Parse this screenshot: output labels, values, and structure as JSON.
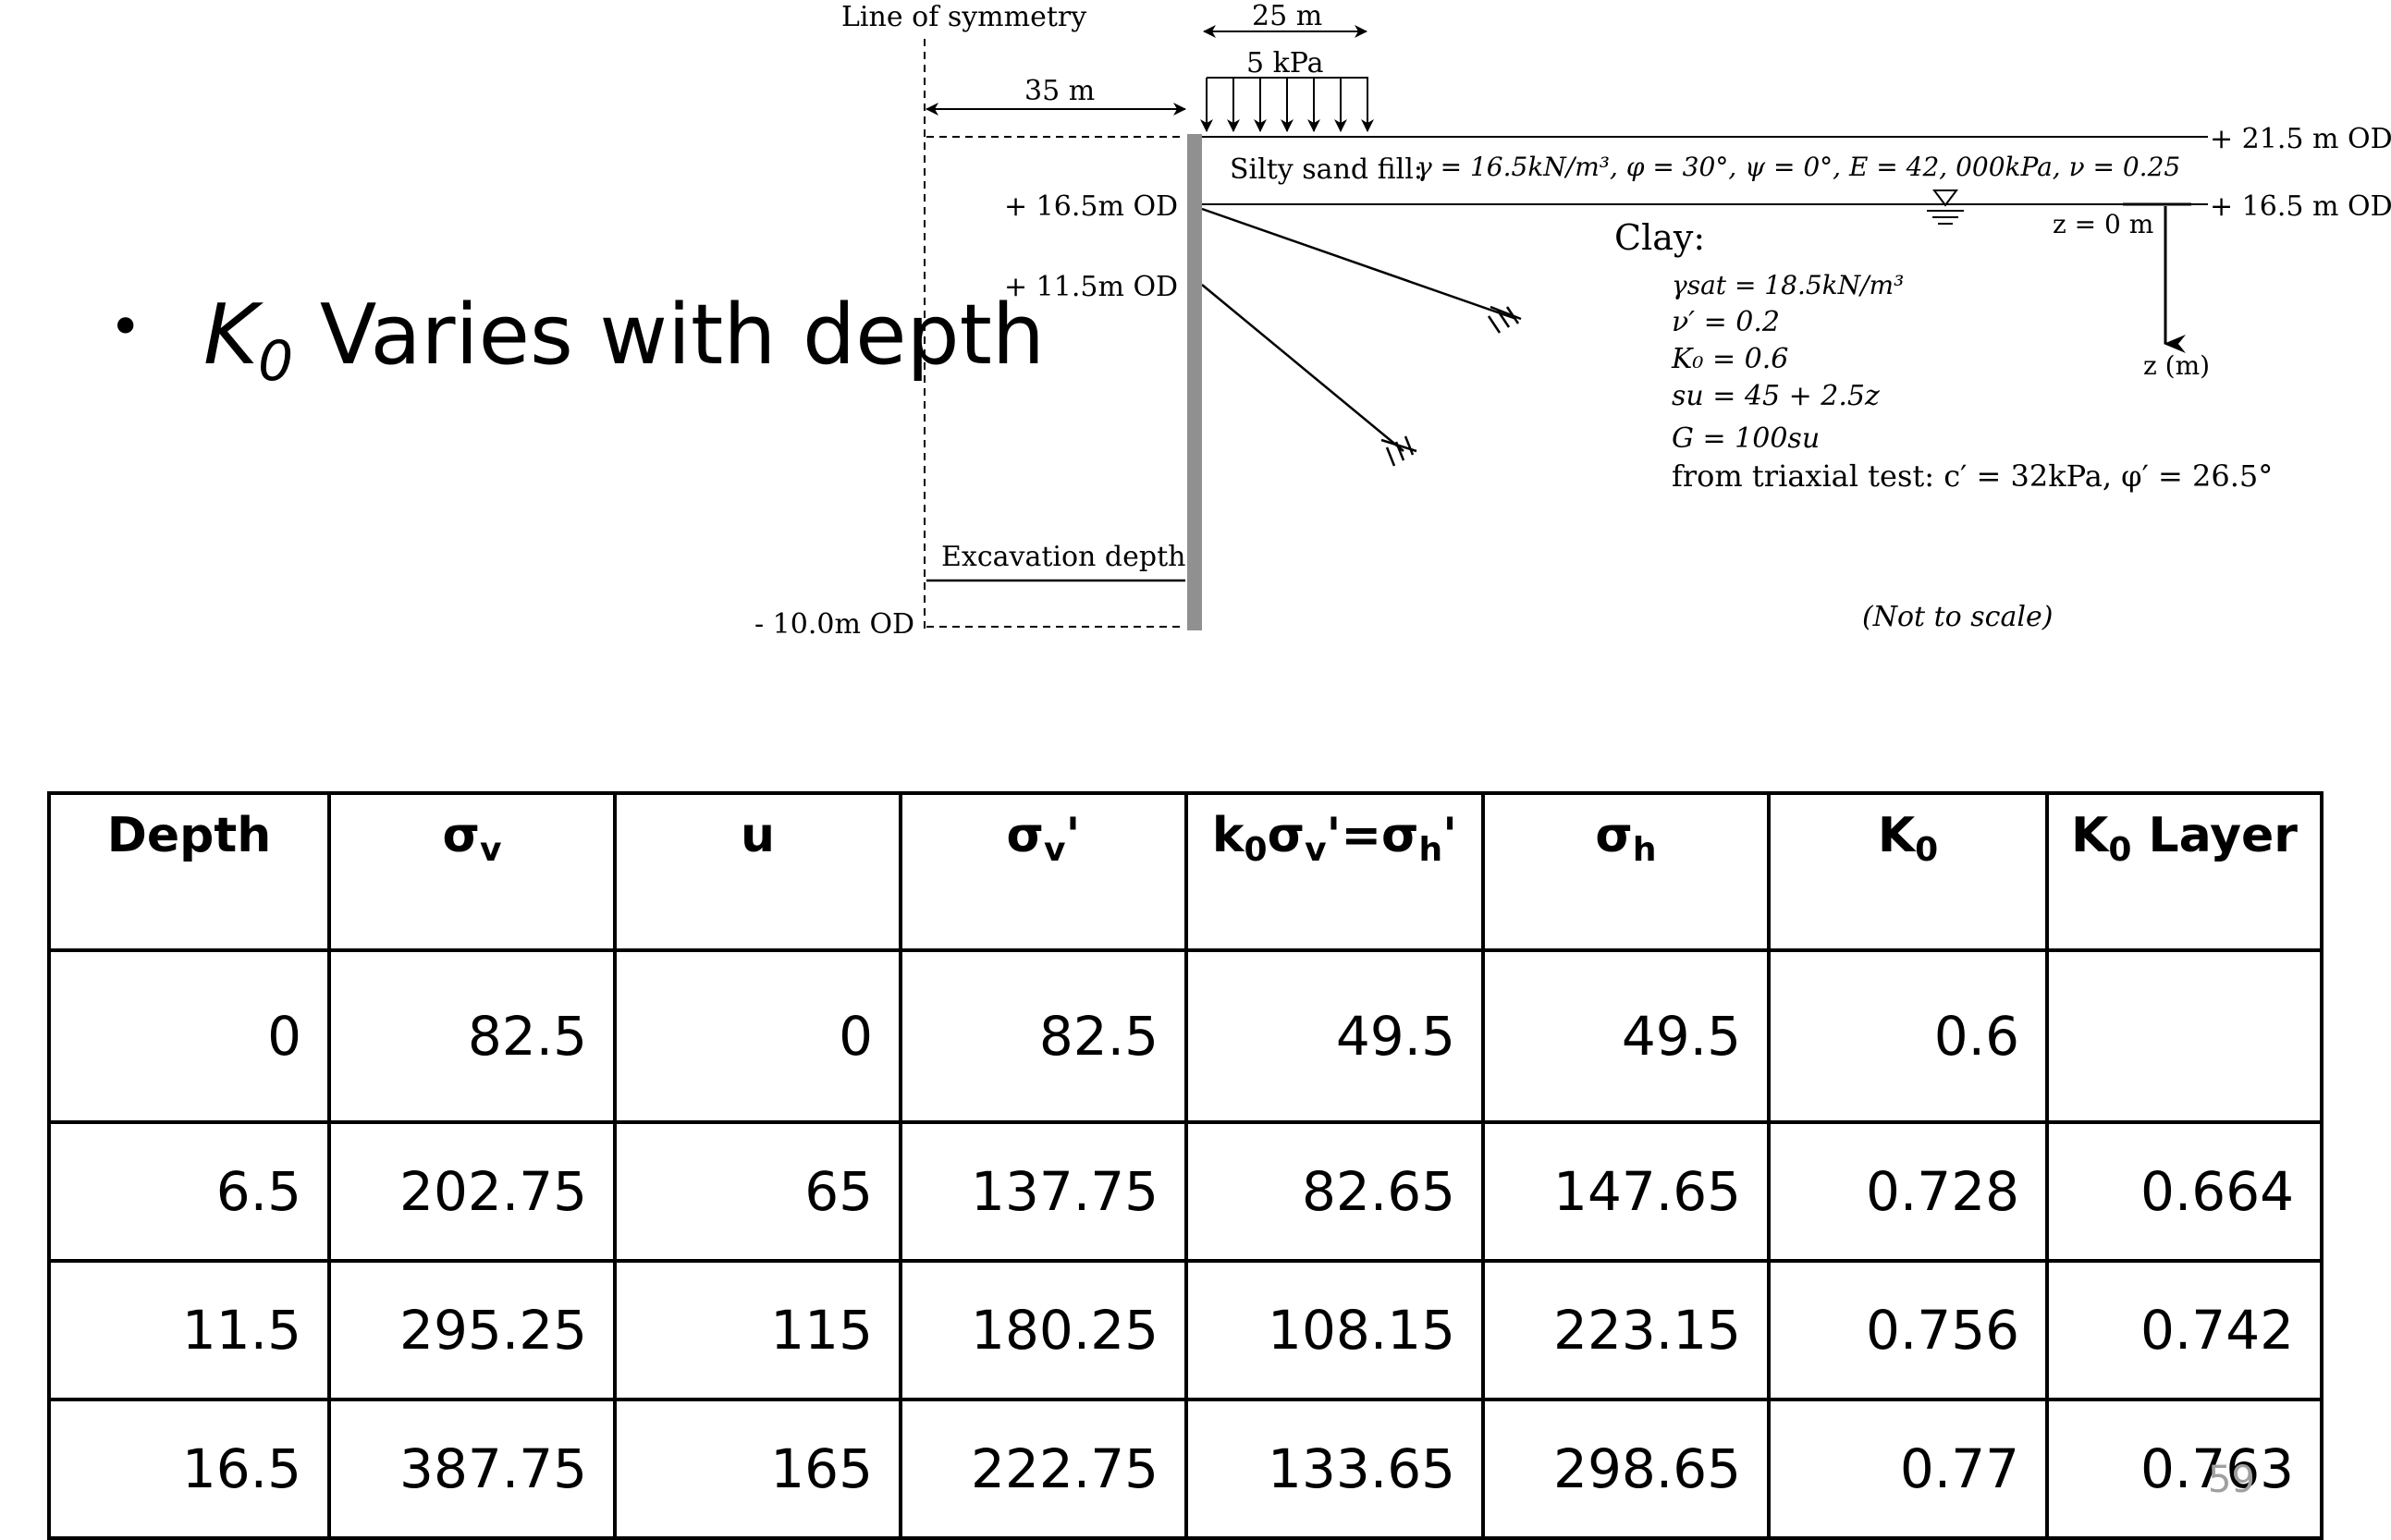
{
  "bullet": {
    "k_symbol": "K",
    "k_sub": "0",
    "text": "Varies with depth"
  },
  "diagram": {
    "line_of_symmetry": "Line of symmetry",
    "dim_35": "35 m",
    "dim_25": "25 m",
    "load": "5 kPa",
    "level_top": "+ 21.5 m OD",
    "level_water": "+ 16.5 m OD",
    "anchor1_level": "+ 16.5m OD",
    "anchor2_level": "+ 11.5m OD",
    "excavation": "Excavation depth",
    "base_level": "- 10.0m OD",
    "not_to_scale": "(Not to scale)",
    "z0": "z = 0 m",
    "zaxis": "z (m)",
    "fill_label": "Silty sand fill:",
    "fill_props": "γ = 16.5kN/m³, φ = 30°, ψ = 0°, E = 42, 000kPa, ν = 0.25",
    "clay_label": "Clay:",
    "clay_props": [
      "γsat = 18.5kN/m³",
      "ν′ = 0.2",
      "K₀ = 0.6",
      "su = 45 + 2.5z",
      "G = 100su",
      "from triaxial test: c′ = 32kPa, φ′ = 26.5°"
    ]
  },
  "table": {
    "headers": [
      "Depth",
      "σv",
      "u",
      "σv'",
      "k0σv'=σh'",
      "σh",
      "K0",
      "K0 Layer"
    ],
    "rows": [
      [
        "0",
        "82.5",
        "0",
        "82.5",
        "49.5",
        "49.5",
        "0.6",
        ""
      ],
      [
        "6.5",
        "202.75",
        "65",
        "137.75",
        "82.65",
        "147.65",
        "0.728",
        "0.664"
      ],
      [
        "11.5",
        "295.25",
        "115",
        "180.25",
        "108.15",
        "223.15",
        "0.756",
        "0.742"
      ],
      [
        "16.5",
        "387.75",
        "165",
        "222.75",
        "133.65",
        "298.65",
        "0.77",
        "0.763"
      ]
    ]
  },
  "page_number": "59"
}
